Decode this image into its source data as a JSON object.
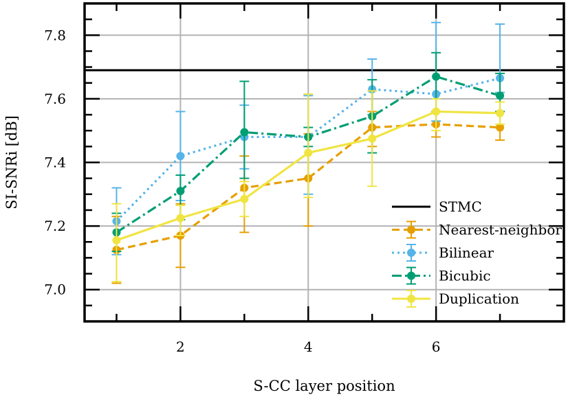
{
  "chart_data": {
    "type": "line",
    "title": "",
    "xlabel": "S-CC layer position",
    "ylabel": "SI-SNRi [dB]",
    "xlim": [
      0.5,
      8.0
    ],
    "ylim": [
      6.9,
      7.9
    ],
    "x_ticks": [
      2,
      4,
      6
    ],
    "x_tick_labels": [
      "2",
      "4",
      "6"
    ],
    "y_ticks": [
      7.0,
      7.2,
      7.4,
      7.6,
      7.8
    ],
    "y_tick_labels": [
      "7.0",
      "7.2",
      "7.4",
      "7.6",
      "7.8"
    ],
    "grid": true,
    "legend_position": "bottom-right",
    "reference_lines": [
      {
        "name": "STMC",
        "y": 7.69,
        "color": "#000000"
      }
    ],
    "series": [
      {
        "name": "Nearest-neighbor",
        "color": "#E69F00",
        "dash": "dashed",
        "x": [
          1,
          2,
          3,
          4,
          5,
          6,
          7
        ],
        "y": [
          7.125,
          7.17,
          7.32,
          7.35,
          7.51,
          7.52,
          7.51
        ],
        "err_low": [
          7.02,
          7.07,
          7.18,
          7.2,
          7.45,
          7.48,
          7.47
        ],
        "err_high": [
          7.23,
          7.27,
          7.42,
          7.49,
          7.56,
          7.56,
          7.56
        ]
      },
      {
        "name": "Bilinear",
        "color": "#56B4E9",
        "dash": "dotted",
        "x": [
          1,
          2,
          3,
          4,
          5,
          6,
          7
        ],
        "y": [
          7.215,
          7.42,
          7.48,
          7.48,
          7.63,
          7.615,
          7.665
        ],
        "err_low": [
          7.11,
          7.28,
          7.38,
          7.3,
          7.55,
          7.53,
          7.62
        ],
        "err_high": [
          7.32,
          7.56,
          7.58,
          7.61,
          7.725,
          7.84,
          7.835
        ]
      },
      {
        "name": "Bicubic",
        "color": "#009E73",
        "dash": "dashdot",
        "x": [
          1,
          2,
          3,
          4,
          5,
          6,
          7
        ],
        "y": [
          7.18,
          7.31,
          7.495,
          7.48,
          7.545,
          7.67,
          7.61
        ],
        "err_low": [
          7.12,
          7.22,
          7.35,
          7.45,
          7.43,
          7.6,
          7.56
        ],
        "err_high": [
          7.24,
          7.36,
          7.655,
          7.51,
          7.66,
          7.745,
          7.68
        ]
      },
      {
        "name": "Duplication",
        "color": "#F0E442",
        "dash": "solid",
        "x": [
          1,
          2,
          3,
          4,
          5,
          6,
          7
        ],
        "y": [
          7.155,
          7.225,
          7.285,
          7.43,
          7.475,
          7.56,
          7.555
        ],
        "err_low": [
          7.025,
          7.17,
          7.23,
          7.29,
          7.325,
          7.5,
          7.52
        ],
        "err_high": [
          7.27,
          7.265,
          7.34,
          7.615,
          7.625,
          7.6,
          7.59
        ]
      }
    ]
  }
}
